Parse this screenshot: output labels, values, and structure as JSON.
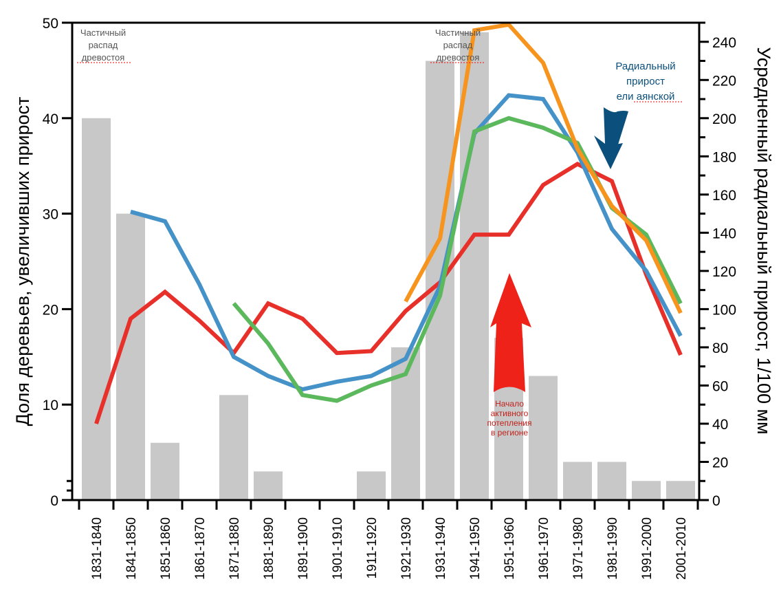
{
  "chart_data": {
    "type": "bar",
    "title": "",
    "categories": [
      "1831-1840",
      "1841-1850",
      "1851-1860",
      "1861-1870",
      "1871-1880",
      "1881-1890",
      "1891-1900",
      "1901-1910",
      "1911-1920",
      "1921-1930",
      "1931-1940",
      "1941-1950",
      "1951-1960",
      "1961-1970",
      "1971-1980",
      "1981-1990",
      "1991-2000",
      "2001-2010"
    ],
    "xlabel": "",
    "ylabel": "Доля деревьев, увеличивших прирост",
    "ylabel_right": "Усредненный радиальный прирост, 1/100 мм",
    "ylim": [
      0,
      50
    ],
    "ylim_right": [
      0,
      250
    ],
    "yticks": [
      0,
      10,
      20,
      30,
      40,
      50
    ],
    "yticks_right": [
      0,
      20,
      40,
      60,
      80,
      100,
      120,
      140,
      160,
      180,
      200,
      220,
      240
    ],
    "grid": false,
    "bars": {
      "name": "Доля деревьев, увеличивших прирост",
      "axis": "left",
      "color": "#c8c8c8",
      "values": [
        40,
        30,
        6,
        0,
        11,
        3,
        0,
        0,
        3,
        16,
        46,
        49,
        17,
        13,
        4,
        4,
        2,
        2
      ]
    },
    "series": [
      {
        "name": "red",
        "axis": "right",
        "color": "#e8302a",
        "values": [
          40,
          95,
          109,
          94,
          77,
          103,
          95,
          77,
          78,
          99,
          114,
          139,
          139,
          165,
          176,
          167,
          118,
          76
        ]
      },
      {
        "name": "blue",
        "axis": "right",
        "color": "#4592c8",
        "values": [
          null,
          151,
          146,
          113,
          75,
          65,
          58,
          62,
          65,
          74,
          112,
          192,
          212,
          210,
          182,
          142,
          120,
          86
        ]
      },
      {
        "name": "green",
        "axis": "right",
        "color": "#5cb85c",
        "values": [
          null,
          null,
          null,
          null,
          103,
          82,
          55,
          52,
          60,
          66,
          107,
          193,
          200,
          195,
          187,
          153,
          139,
          103
        ]
      },
      {
        "name": "orange",
        "axis": "right",
        "color": "#f7941d",
        "values": [
          null,
          null,
          null,
          null,
          null,
          null,
          null,
          null,
          null,
          104,
          137,
          246,
          249,
          229,
          184,
          154,
          136,
          98
        ]
      }
    ],
    "annotations": [
      {
        "id": "decay-1",
        "lines": [
          "Частичный",
          "распад",
          "древостоя"
        ],
        "near": "1831-1840",
        "color": "#555555"
      },
      {
        "id": "decay-2",
        "lines": [
          "Частичный",
          "распад",
          "древостоя"
        ],
        "near": "1931-1950",
        "color": "#555555"
      },
      {
        "id": "radial",
        "lines": [
          "Радиальный",
          "прирост",
          "ели аянской"
        ],
        "near": "1981-1990",
        "color": "#0b4f7c"
      },
      {
        "id": "warming",
        "lines": [
          "Начало",
          "активного",
          "потепления",
          "в регионе"
        ],
        "near": "1951-1960",
        "color": "#c0201a"
      }
    ]
  },
  "colors": {
    "bar": "#c8c8c8",
    "blue_arrow": "#0b4f7c",
    "red_arrow": "#ee2219"
  }
}
